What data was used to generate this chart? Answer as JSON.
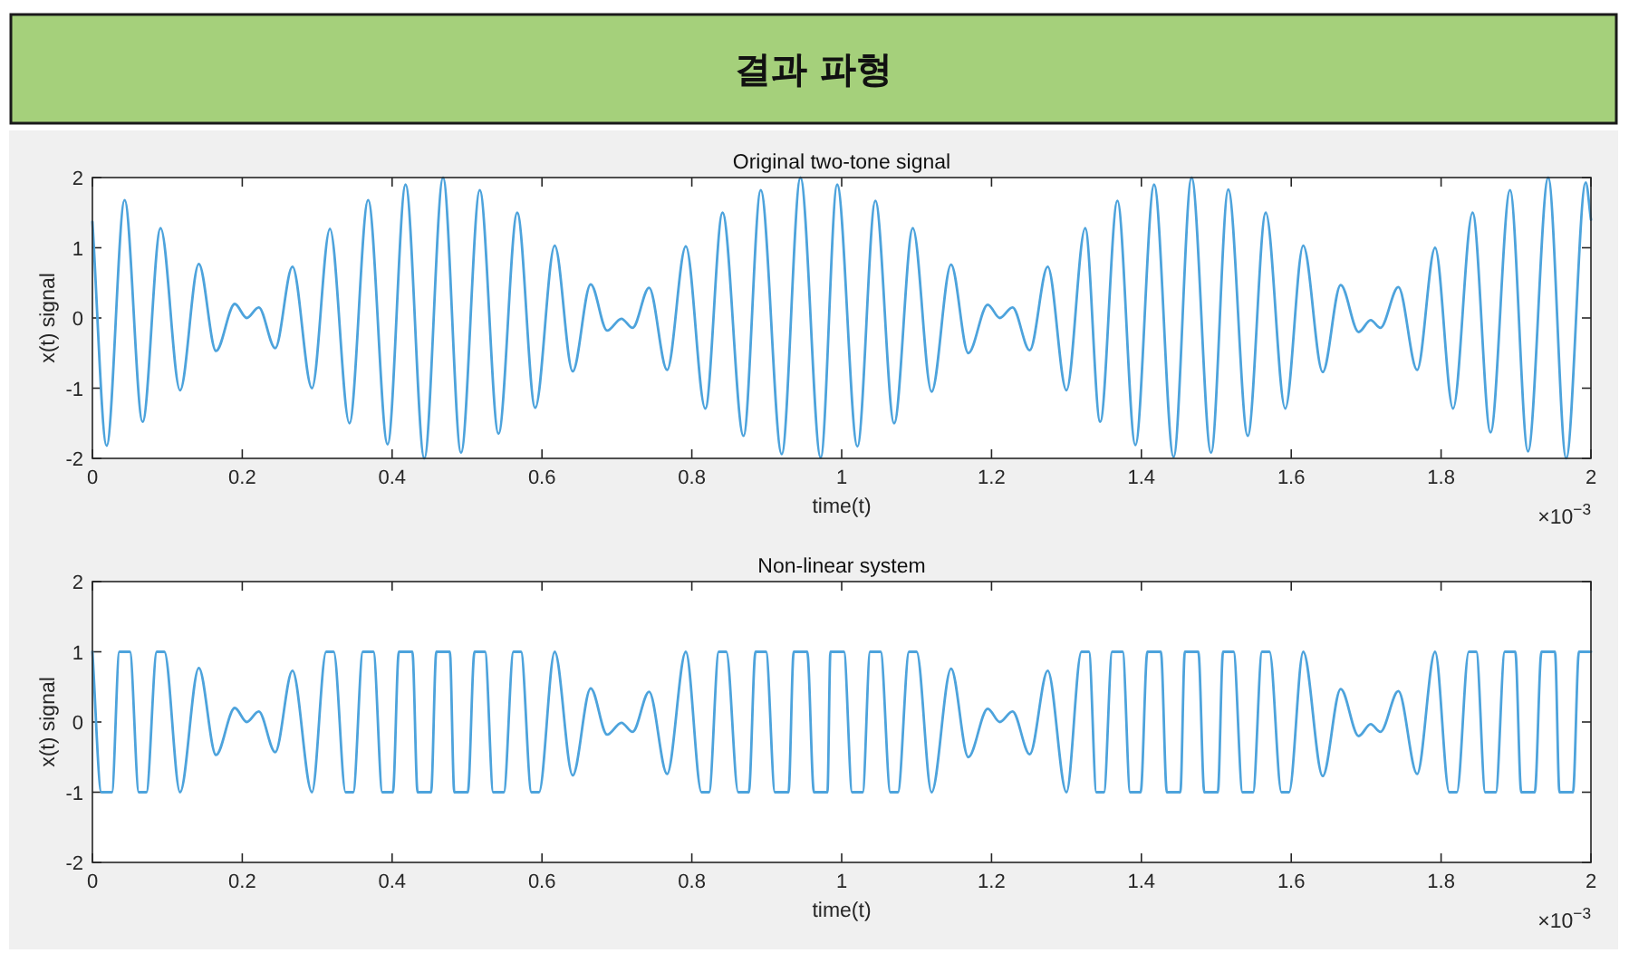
{
  "chart_data": [
    {
      "type": "line",
      "title": "Original two-tone signal",
      "xlabel": "time(t)",
      "ylabel": "x(t) signal",
      "annotations": [
        "결과 파형",
        "×10$^{−3}$"
      ],
      "xlim": [
        0,
        2
      ],
      "ylim": [
        -2,
        2
      ],
      "xticks": [
        0,
        0.2,
        0.4,
        0.6,
        0.8,
        1,
        1.2,
        1.4,
        1.6,
        1.8,
        2
      ],
      "yticks": [
        -2,
        -1,
        0,
        1,
        2
      ],
      "x": [
        0,
        0.019,
        0.043,
        0.067,
        0.091,
        0.117,
        0.142,
        0.165,
        0.19,
        0.206,
        0.222,
        0.244,
        0.267,
        0.293,
        0.317,
        0.343,
        0.368,
        0.394,
        0.418,
        0.443,
        0.468,
        0.492,
        0.517,
        0.542,
        0.567,
        0.591,
        0.617,
        0.641,
        0.665,
        0.687,
        0.706,
        0.721,
        0.743,
        0.767,
        0.792,
        0.818,
        0.841,
        0.869,
        0.892,
        0.92,
        0.945,
        0.972,
        0.994,
        1.021,
        1.045,
        1.07,
        1.095,
        1.12,
        1.146,
        1.169,
        1.195,
        1.211,
        1.228,
        1.251,
        1.275,
        1.3,
        1.325,
        1.345,
        1.368,
        1.392,
        1.417,
        1.443,
        1.467,
        1.493,
        1.516,
        1.542,
        1.566,
        1.592,
        1.616,
        1.642,
        1.666,
        1.69,
        1.706,
        1.719,
        1.743,
        1.768,
        1.792,
        1.816,
        1.842,
        1.866,
        1.892,
        1.916,
        1.943,
        1.967,
        1.993,
        2
      ],
      "series": [
        {
          "color": "#4da3dc",
          "values": [
            1.37,
            -1.82,
            1.68,
            -1.48,
            1.28,
            -1.03,
            0.77,
            -0.47,
            0.2,
            0.0,
            0.15,
            -0.43,
            0.73,
            -1.0,
            1.27,
            -1.5,
            1.68,
            -1.8,
            1.9,
            -2.0,
            2.0,
            -1.92,
            1.82,
            -1.65,
            1.5,
            -1.28,
            1.03,
            -0.76,
            0.48,
            -0.18,
            -0.01,
            -0.14,
            0.43,
            -0.74,
            1.02,
            -1.29,
            1.5,
            -1.68,
            1.82,
            -1.94,
            2.0,
            -1.99,
            1.9,
            -1.83,
            1.67,
            -1.5,
            1.28,
            -1.05,
            0.76,
            -0.5,
            0.19,
            0.0,
            0.15,
            -0.46,
            0.73,
            -1.03,
            1.28,
            -1.48,
            1.67,
            -1.81,
            1.9,
            -1.98,
            2.0,
            -1.92,
            1.83,
            -1.68,
            1.5,
            -1.29,
            1.03,
            -0.77,
            0.47,
            -0.2,
            -0.03,
            -0.14,
            0.44,
            -0.74,
            1.0,
            -1.29,
            1.5,
            -1.63,
            1.82,
            -1.9,
            2.0,
            -2.0,
            1.93,
            1.4
          ]
        }
      ]
    },
    {
      "type": "line",
      "title": "Non-linear system",
      "xlabel": "time(t)",
      "ylabel": "x(t) signal",
      "annotations": [
        "×10$^{−3}$"
      ],
      "xlim": [
        0,
        2
      ],
      "ylim": [
        -2,
        2
      ],
      "xticks": [
        0,
        0.2,
        0.4,
        0.6,
        0.8,
        1,
        1.2,
        1.4,
        1.6,
        1.8,
        2
      ],
      "yticks": [
        -2,
        -1,
        0,
        1,
        2
      ],
      "x": [
        0,
        0.012,
        0.026,
        0.036,
        0.05,
        0.062,
        0.072,
        0.086,
        0.096,
        0.117,
        0.142,
        0.165,
        0.19,
        0.206,
        0.222,
        0.244,
        0.267,
        0.293,
        0.312,
        0.322,
        0.338,
        0.348,
        0.361,
        0.375,
        0.387,
        0.401,
        0.409,
        0.427,
        0.434,
        0.452,
        0.459,
        0.477,
        0.483,
        0.501,
        0.51,
        0.524,
        0.535,
        0.549,
        0.562,
        0.572,
        0.586,
        0.596,
        0.617,
        0.641,
        0.665,
        0.687,
        0.706,
        0.721,
        0.743,
        0.767,
        0.792,
        0.813,
        0.823,
        0.836,
        0.846,
        0.862,
        0.876,
        0.885,
        0.899,
        0.911,
        0.929,
        0.936,
        0.954,
        0.963,
        0.981,
        0.985,
        1.003,
        1.014,
        1.028,
        1.038,
        1.052,
        1.065,
        1.075,
        1.09,
        1.1,
        1.12,
        1.146,
        1.169,
        1.195,
        1.211,
        1.228,
        1.251,
        1.275,
        1.3,
        1.32,
        1.33,
        1.34,
        1.35,
        1.361,
        1.375,
        1.385,
        1.399,
        1.408,
        1.426,
        1.434,
        1.452,
        1.458,
        1.476,
        1.484,
        1.502,
        1.509,
        1.523,
        1.535,
        1.549,
        1.561,
        1.571,
        1.587,
        1.597,
        1.616,
        1.642,
        1.666,
        1.69,
        1.706,
        1.719,
        1.743,
        1.768,
        1.792,
        1.811,
        1.821,
        1.837,
        1.847,
        1.859,
        1.873,
        1.885,
        1.899,
        1.907,
        1.925,
        1.934,
        1.952,
        1.958,
        1.976,
        1.984,
        2
      ],
      "series": [
        {
          "color": "#4da3dc",
          "values": [
            1,
            -1,
            -1,
            1,
            1,
            -1,
            -1,
            1,
            1,
            -1,
            0.77,
            -0.47,
            0.2,
            0.0,
            0.15,
            -0.43,
            0.73,
            -1,
            1,
            1,
            -1,
            -1,
            1,
            1,
            -1,
            -1,
            1,
            1,
            -1,
            -1,
            1,
            1,
            -1,
            -1,
            1,
            1,
            -1,
            -1,
            1,
            1,
            -1,
            -1,
            1,
            -0.76,
            0.48,
            -0.18,
            -0.01,
            -0.14,
            0.43,
            -0.74,
            1,
            -1,
            -1,
            1,
            1,
            -1,
            -1,
            1,
            1,
            -1,
            -1,
            1,
            1,
            -1,
            -1,
            1,
            1,
            -1,
            -1,
            1,
            1,
            -1,
            -1,
            1,
            1,
            -1,
            0.76,
            -0.5,
            0.19,
            0.0,
            0.15,
            -0.46,
            0.73,
            -1,
            1,
            1,
            -1,
            -1,
            1,
            1,
            -1,
            -1,
            1,
            1,
            -1,
            -1,
            1,
            1,
            -1,
            -1,
            1,
            1,
            -1,
            -1,
            1,
            1,
            -1,
            -1,
            1,
            -0.77,
            0.47,
            -0.2,
            -0.03,
            -0.14,
            0.44,
            -0.74,
            1,
            -1,
            -1,
            1,
            1,
            -1,
            -1,
            1,
            1,
            -1,
            -1,
            1,
            1,
            -1,
            -1,
            1,
            1
          ]
        }
      ]
    }
  ]
}
